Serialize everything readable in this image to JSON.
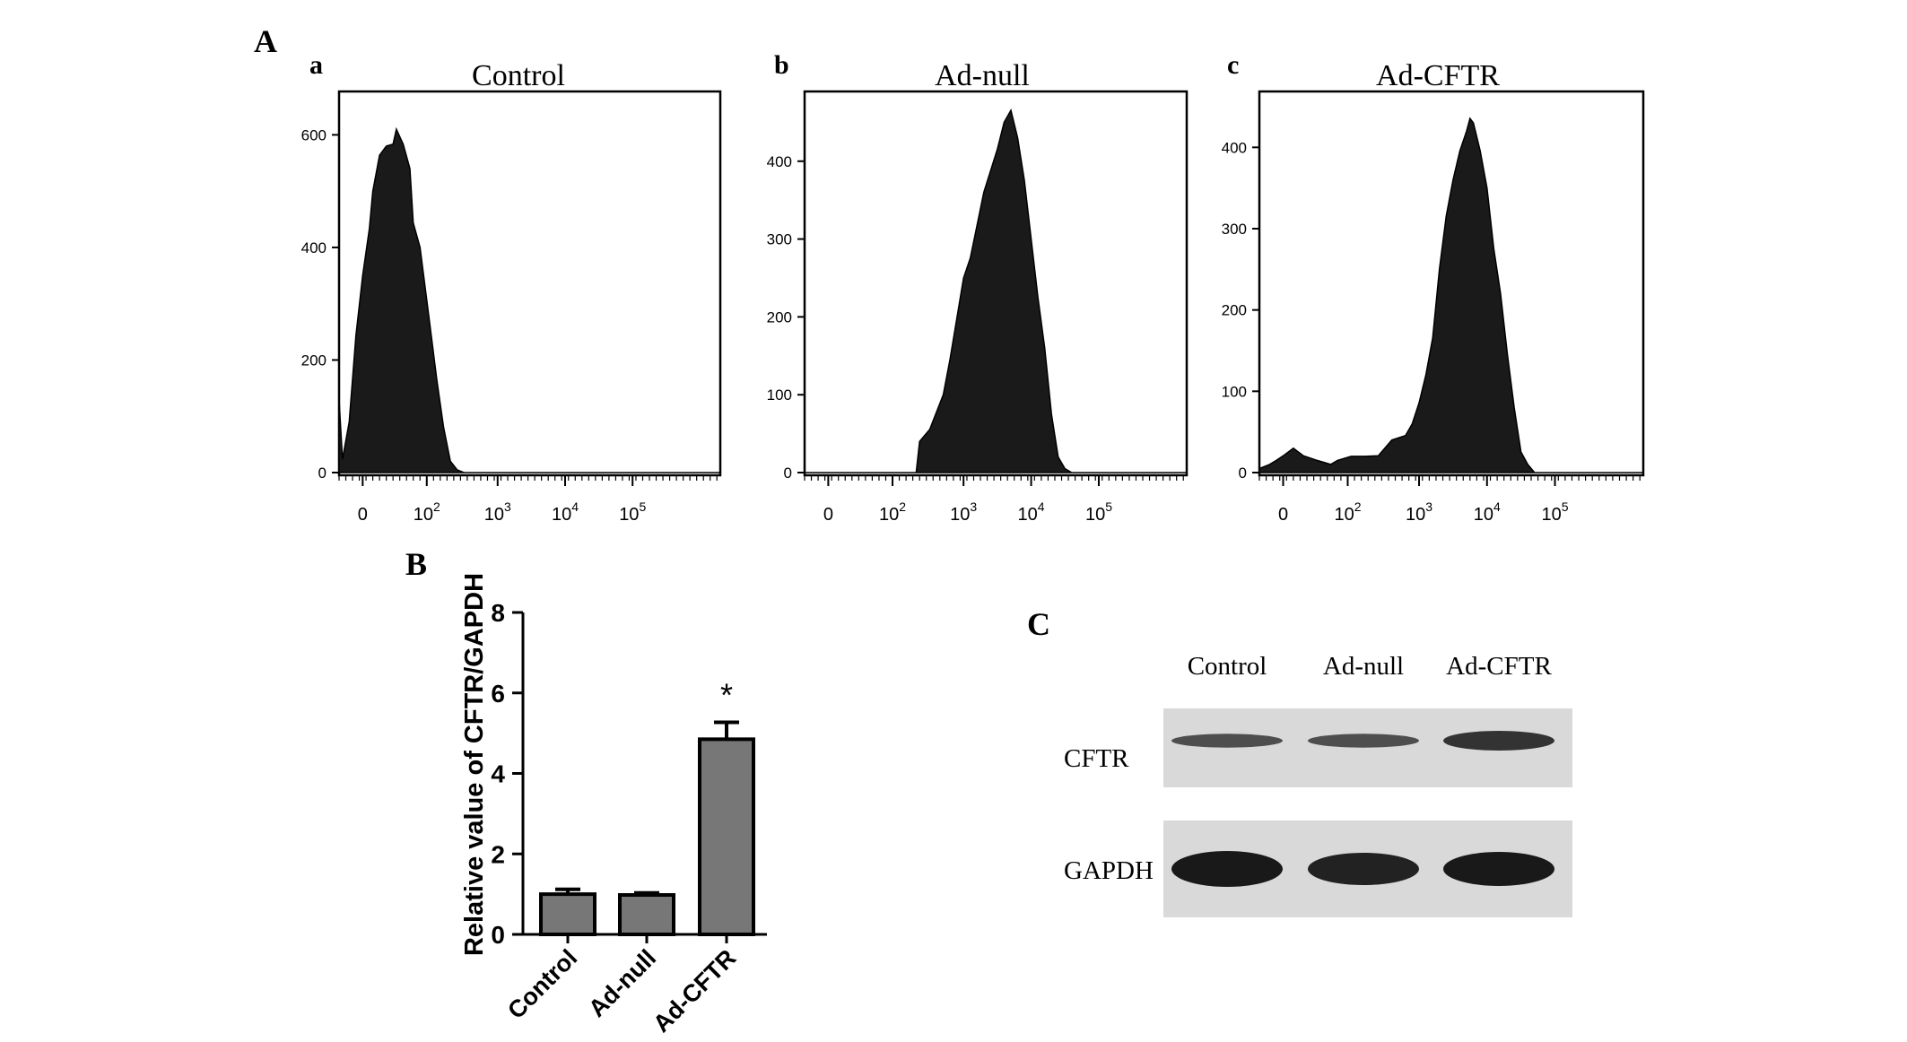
{
  "panels": {
    "A": {
      "label": "A",
      "histograms": [
        {
          "sublabel": "a",
          "title": "Control",
          "y_ticks": [
            "600",
            "400",
            "200",
            "0"
          ],
          "y_max": 650,
          "x_ticks": [
            {
              "base": "0",
              "exp": ""
            },
            {
              "base": "10",
              "exp": "2"
            },
            {
              "base": "10",
              "exp": "3"
            },
            {
              "base": "10",
              "exp": "4"
            },
            {
              "base": "10",
              "exp": "5"
            }
          ],
          "chart_data": {
            "type": "area",
            "xlabel": "",
            "ylabel": "",
            "x_scale": "biexponential",
            "x": [
              -0.35,
              -0.3,
              -0.2,
              -0.1,
              0.0,
              0.1,
              0.15,
              0.25,
              0.35,
              0.45,
              0.5,
              0.6,
              0.7,
              0.75,
              0.85,
              0.9,
              1.0,
              1.1,
              1.2,
              1.3,
              1.4,
              1.5,
              2.0,
              3.0,
              4.0,
              5.0,
              5.3
            ],
            "y": [
              130,
              30,
              90,
              250,
              350,
              440,
              500,
              570,
              580,
              590,
              610,
              590,
              540,
              450,
              400,
              360,
              260,
              170,
              80,
              20,
              5,
              0,
              0,
              0,
              0,
              0,
              0
            ]
          }
        },
        {
          "sublabel": "b",
          "title": "Ad-null",
          "y_ticks": [
            "400",
            "300",
            "200",
            "100",
            "0"
          ],
          "y_max": 470,
          "x_ticks": [
            {
              "base": "0",
              "exp": ""
            },
            {
              "base": "10",
              "exp": "2"
            },
            {
              "base": "10",
              "exp": "3"
            },
            {
              "base": "10",
              "exp": "4"
            },
            {
              "base": "10",
              "exp": "5"
            }
          ],
          "chart_data": {
            "type": "area",
            "xlabel": "",
            "ylabel": "",
            "x_scale": "biexponential",
            "x": [
              -0.35,
              0.0,
              1.0,
              1.3,
              1.35,
              1.5,
              1.7,
              1.8,
              2.0,
              2.1,
              2.3,
              2.5,
              2.6,
              2.7,
              2.8,
              2.9,
              3.0,
              3.1,
              3.2,
              3.3,
              3.4,
              3.5,
              3.6,
              4.0,
              5.0,
              5.3
            ],
            "y": [
              0,
              0,
              0,
              0,
              40,
              60,
              100,
              150,
              250,
              280,
              360,
              420,
              450,
              470,
              430,
              380,
              300,
              230,
              160,
              80,
              20,
              5,
              0,
              0,
              0,
              0
            ]
          }
        },
        {
          "sublabel": "c",
          "title": "Ad-CFTR",
          "y_ticks": [
            "400",
            "300",
            "200",
            "100",
            "0"
          ],
          "y_max": 450,
          "x_ticks": [
            {
              "base": "0",
              "exp": ""
            },
            {
              "base": "10",
              "exp": "2"
            },
            {
              "base": "10",
              "exp": "3"
            },
            {
              "base": "10",
              "exp": "4"
            },
            {
              "base": "10",
              "exp": "5"
            }
          ],
          "chart_data": {
            "type": "area",
            "xlabel": "",
            "ylabel": "",
            "x_scale": "biexponential",
            "x": [
              -0.35,
              -0.2,
              -0.1,
              0.0,
              0.15,
              0.3,
              0.5,
              0.7,
              0.8,
              1.0,
              1.2,
              1.4,
              1.6,
              1.8,
              1.9,
              2.0,
              2.1,
              2.2,
              2.3,
              2.4,
              2.5,
              2.6,
              2.7,
              2.75,
              2.8,
              2.9,
              3.0,
              3.1,
              3.2,
              3.3,
              3.4,
              3.5,
              3.6,
              3.7,
              4.0,
              5.0,
              5.3
            ],
            "y": [
              5,
              10,
              15,
              25,
              30,
              25,
              15,
              10,
              15,
              20,
              20,
              25,
              40,
              50,
              60,
              90,
              120,
              170,
              250,
              320,
              360,
              400,
              420,
              440,
              430,
              400,
              350,
              280,
              220,
              150,
              80,
              30,
              10,
              0,
              0,
              0,
              0
            ]
          }
        }
      ]
    },
    "B": {
      "label": "B",
      "ylabel": "Relative value of CFTR/GAPDH",
      "y_ticks": [
        "8",
        "6",
        "4",
        "2",
        "0"
      ],
      "significance_marker": "*",
      "chart_data": {
        "type": "bar",
        "categories": [
          "Control",
          "Ad-null",
          "Ad-CFTR"
        ],
        "values": [
          1.0,
          0.98,
          4.85
        ],
        "errors": [
          0.12,
          0.05,
          0.42
        ],
        "xlabel": "",
        "ylabel": "Relative value of CFTR/GAPDH",
        "ylim": [
          0,
          8
        ]
      }
    },
    "C": {
      "label": "C",
      "lanes": [
        "Control",
        "Ad-null",
        "Ad-CFTR"
      ],
      "blots": [
        {
          "name": "CFTR",
          "band_intensity": [
            0.7,
            0.7,
            0.85
          ],
          "band_thickness": [
            0.7,
            0.7,
            1.0
          ]
        },
        {
          "name": "GAPDH",
          "band_intensity": [
            1.0,
            0.95,
            1.0
          ],
          "band_thickness": [
            1.0,
            0.9,
            0.95
          ]
        }
      ]
    }
  },
  "colors": {
    "histogram_fill": "#1a1a1a",
    "bar_fill": "#777777",
    "blot_bg": "#d9d9d9",
    "band": "#222222"
  }
}
